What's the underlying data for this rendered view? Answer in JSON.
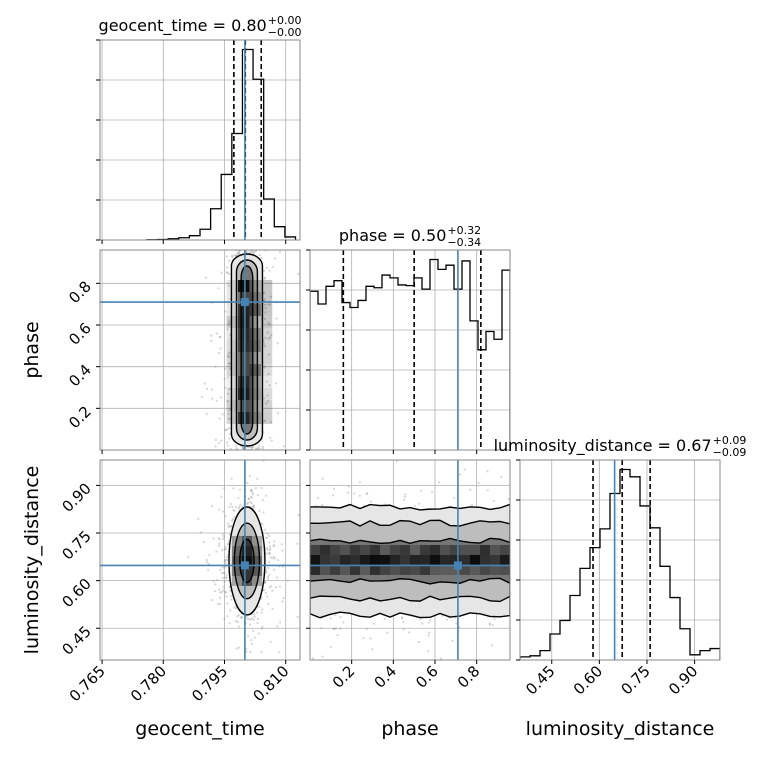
{
  "chart_data": {
    "type": "corner",
    "parameters": [
      "geocent_time",
      "phase",
      "luminosity_distance"
    ],
    "truths": {
      "geocent_time": 0.8,
      "phase": 0.71,
      "luminosity_distance": 0.648
    },
    "titles": [
      {
        "param": "geocent_time",
        "label": "geocent_time = 0.80",
        "sup": "+0.00",
        "sub": "−0.00"
      },
      {
        "param": "phase",
        "label": "phase = 0.50",
        "sup": "+0.32",
        "sub": "−0.34"
      },
      {
        "param": "luminosity_distance",
        "label": "luminosity_distance = 0.67",
        "sup": "+0.09",
        "sub": "−0.09"
      }
    ],
    "axis_labels": {
      "x": [
        "geocent_time",
        "phase",
        "luminosity_distance"
      ],
      "y": [
        "phase",
        "luminosity_distance"
      ]
    },
    "ticks": {
      "geocent_time": [
        "0.765",
        "0.780",
        "0.795",
        "0.810"
      ],
      "phase": [
        "0.2",
        "0.4",
        "0.6",
        "0.8"
      ],
      "luminosity_distance": [
        "0.45",
        "0.60",
        "0.75",
        "0.90"
      ]
    },
    "ranges": {
      "geocent_time": [
        0.7645,
        0.8135
      ],
      "phase": [
        0.0,
        0.96
      ],
      "luminosity_distance": [
        0.35,
        0.98
      ]
    },
    "histograms": {
      "geocent_time": {
        "edges": [
          0.776,
          0.7786,
          0.7812,
          0.7838,
          0.7864,
          0.789,
          0.7916,
          0.7942,
          0.7968,
          0.7994,
          0.802,
          0.8046,
          0.8072,
          0.8098,
          0.8124
        ],
        "heights": [
          0.2,
          0.5,
          1.2,
          2.2,
          4.2,
          10.5,
          30.5,
          64,
          104,
          186,
          157,
          40,
          13,
          3
        ],
        "quantiles": [
          0.7973,
          0.8001,
          0.804
        ]
      },
      "phase": {
        "edges": [
          0.0,
          0.0384,
          0.0768,
          0.1152,
          0.1536,
          0.192,
          0.2304,
          0.2688,
          0.3072,
          0.3456,
          0.384,
          0.4224,
          0.4608,
          0.4992,
          0.5376,
          0.576,
          0.6144,
          0.6528,
          0.6912,
          0.7296,
          0.768,
          0.8064,
          0.8448,
          0.8832,
          0.9216,
          0.96
        ],
        "heights": [
          225,
          207,
          232,
          240,
          209,
          202,
          212,
          232,
          230,
          248,
          244,
          234,
          233,
          244,
          228,
          270,
          256,
          262,
          228,
          268,
          183,
          142,
          168,
          157,
          255
        ],
        "quantiles": [
          0.16,
          0.5,
          0.82
        ]
      },
      "luminosity_distance": {
        "edges": [
          0.35,
          0.3815,
          0.413,
          0.4445,
          0.476,
          0.5075,
          0.539,
          0.5705,
          0.602,
          0.6335,
          0.665,
          0.6965,
          0.728,
          0.7595,
          0.791,
          0.8225,
          0.854,
          0.8855,
          0.917,
          0.9485,
          0.98
        ],
        "heights": [
          3,
          4,
          9,
          25,
          38,
          62,
          88,
          108,
          126,
          160,
          183,
          176,
          148,
          127,
          90,
          60,
          30,
          5,
          9,
          11
        ],
        "quantiles": [
          0.58,
          0.672,
          0.76
        ]
      }
    },
    "joint": [
      {
        "x": "geocent_time",
        "y": "phase",
        "center": [
          0.8005,
          0.5
        ],
        "spread": [
          0.0019,
          0.27
        ],
        "y_uniform": [
          0.0,
          0.96
        ],
        "columns": [
          [
            0.7955,
            0.7983,
            0.2
          ],
          [
            0.7983,
            0.8011,
            1.0
          ],
          [
            0.8011,
            0.8039,
            0.55
          ],
          [
            0.8039,
            0.8067,
            0.25
          ]
        ]
      },
      {
        "x": "geocent_time",
        "y": "luminosity_distance",
        "center": [
          0.8005,
          0.662
        ],
        "spread": [
          0.0022,
          0.085
        ]
      },
      {
        "x": "phase",
        "y": "luminosity_distance",
        "center": [
          0.48,
          0.662
        ],
        "spread": [
          0.27,
          0.085
        ],
        "x_uniform": [
          0.0,
          0.96
        ]
      }
    ]
  }
}
